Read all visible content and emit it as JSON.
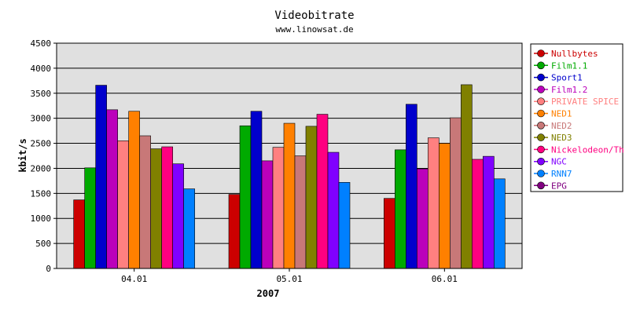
{
  "chart_data": {
    "type": "bar",
    "title": "Videobitrate",
    "subtitle": "www.linowsat.de",
    "xlabel": "2007",
    "ylabel": "kbit/s",
    "ylim": [
      0,
      4500
    ],
    "yticks": [
      0,
      500,
      1000,
      1500,
      2000,
      2500,
      3000,
      3500,
      4000,
      4500
    ],
    "categories": [
      "04.01",
      "05.01",
      "06.01"
    ],
    "grid": true,
    "legend_position": "right",
    "plot_background": "#e0e0e0",
    "series": [
      {
        "name": "Nullbytes",
        "color": "#cc0000",
        "values": [
          1370,
          1480,
          1400
        ]
      },
      {
        "name": "Film1.1",
        "color": "#00aa00",
        "values": [
          2010,
          2850,
          2370
        ]
      },
      {
        "name": "Sport1",
        "color": "#0000cc",
        "values": [
          3660,
          3140,
          3280
        ]
      },
      {
        "name": "Film1.2",
        "color": "#bb00bb",
        "values": [
          3170,
          2150,
          1990
        ]
      },
      {
        "name": "PRIVATE SPICE",
        "color": "#ff8080",
        "values": [
          2550,
          2420,
          2610
        ]
      },
      {
        "name": "NED1",
        "color": "#ff8000",
        "values": [
          3140,
          2900,
          2500
        ]
      },
      {
        "name": "NED2",
        "color": "#c87878",
        "values": [
          2650,
          2250,
          3010
        ]
      },
      {
        "name": "NED3",
        "color": "#808000",
        "values": [
          2390,
          2840,
          3670
        ]
      },
      {
        "name": "Nickelodeon/Th",
        "color": "#ff0080",
        "values": [
          2430,
          3080,
          2180
        ]
      },
      {
        "name": "NGC",
        "color": "#8000ff",
        "values": [
          2090,
          2320,
          2240
        ]
      },
      {
        "name": "RNN7",
        "color": "#0080ff",
        "values": [
          1590,
          1720,
          1790
        ]
      },
      {
        "name": "EPG",
        "color": "#800080",
        "values": [
          null,
          null,
          null
        ]
      }
    ]
  }
}
